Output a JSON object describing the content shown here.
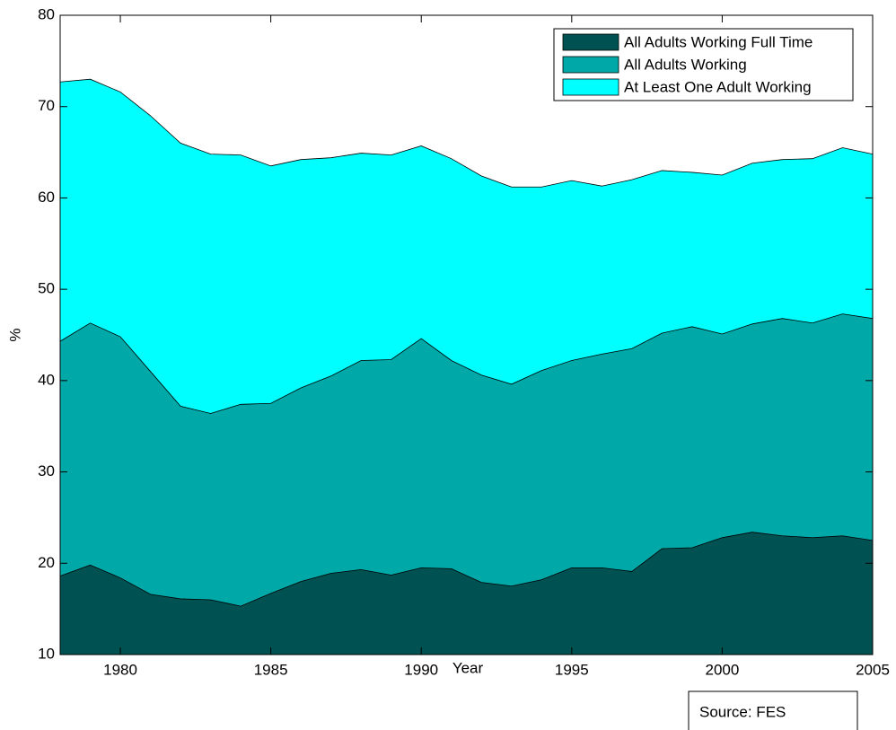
{
  "chart_data": {
    "type": "area",
    "x_label": "Year",
    "y_label": "%",
    "x": [
      1978,
      1979,
      1980,
      1981,
      1982,
      1983,
      1984,
      1985,
      1986,
      1987,
      1988,
      1989,
      1990,
      1991,
      1992,
      1993,
      1994,
      1995,
      1996,
      1997,
      1998,
      1999,
      2000,
      2001,
      2002,
      2003,
      2004,
      2005
    ],
    "series": [
      {
        "name": "All Adults Working Full Time",
        "color": "#005252",
        "values": [
          18.6,
          19.8,
          18.4,
          16.6,
          16.1,
          16.0,
          15.3,
          16.7,
          18.0,
          18.9,
          19.3,
          18.7,
          19.5,
          19.4,
          17.9,
          17.5,
          18.2,
          19.5,
          19.5,
          19.1,
          21.6,
          21.7,
          22.8,
          23.4,
          23.0,
          22.8,
          23.0,
          22.5
        ]
      },
      {
        "name": "All Adults Working",
        "color": "#00a8a8",
        "values": [
          44.3,
          46.3,
          44.8,
          41.0,
          37.2,
          36.4,
          37.4,
          37.5,
          39.2,
          40.5,
          42.2,
          42.3,
          44.6,
          42.2,
          40.6,
          39.6,
          41.1,
          42.2,
          42.9,
          43.5,
          45.2,
          45.9,
          45.1,
          46.2,
          46.8,
          46.3,
          47.3,
          46.8
        ]
      },
      {
        "name": "At Least One Adult Working",
        "color": "#00ffff",
        "values": [
          72.7,
          73.0,
          71.6,
          69.0,
          66.0,
          64.8,
          64.7,
          63.5,
          64.2,
          64.4,
          64.9,
          64.7,
          65.7,
          64.3,
          62.4,
          61.2,
          61.2,
          61.9,
          61.3,
          62.0,
          63.0,
          62.8,
          62.5,
          63.8,
          64.2,
          64.3,
          65.5,
          64.8
        ]
      }
    ],
    "xlim": [
      1978,
      2005
    ],
    "xticks": [
      1980,
      1985,
      1990,
      1995,
      2000,
      2005
    ],
    "ylim": [
      10,
      80
    ],
    "yticks": [
      10,
      20,
      30,
      40,
      50,
      60,
      70,
      80
    ],
    "grid": false,
    "legend_position": "upper right",
    "annotation": "Source: FES"
  }
}
